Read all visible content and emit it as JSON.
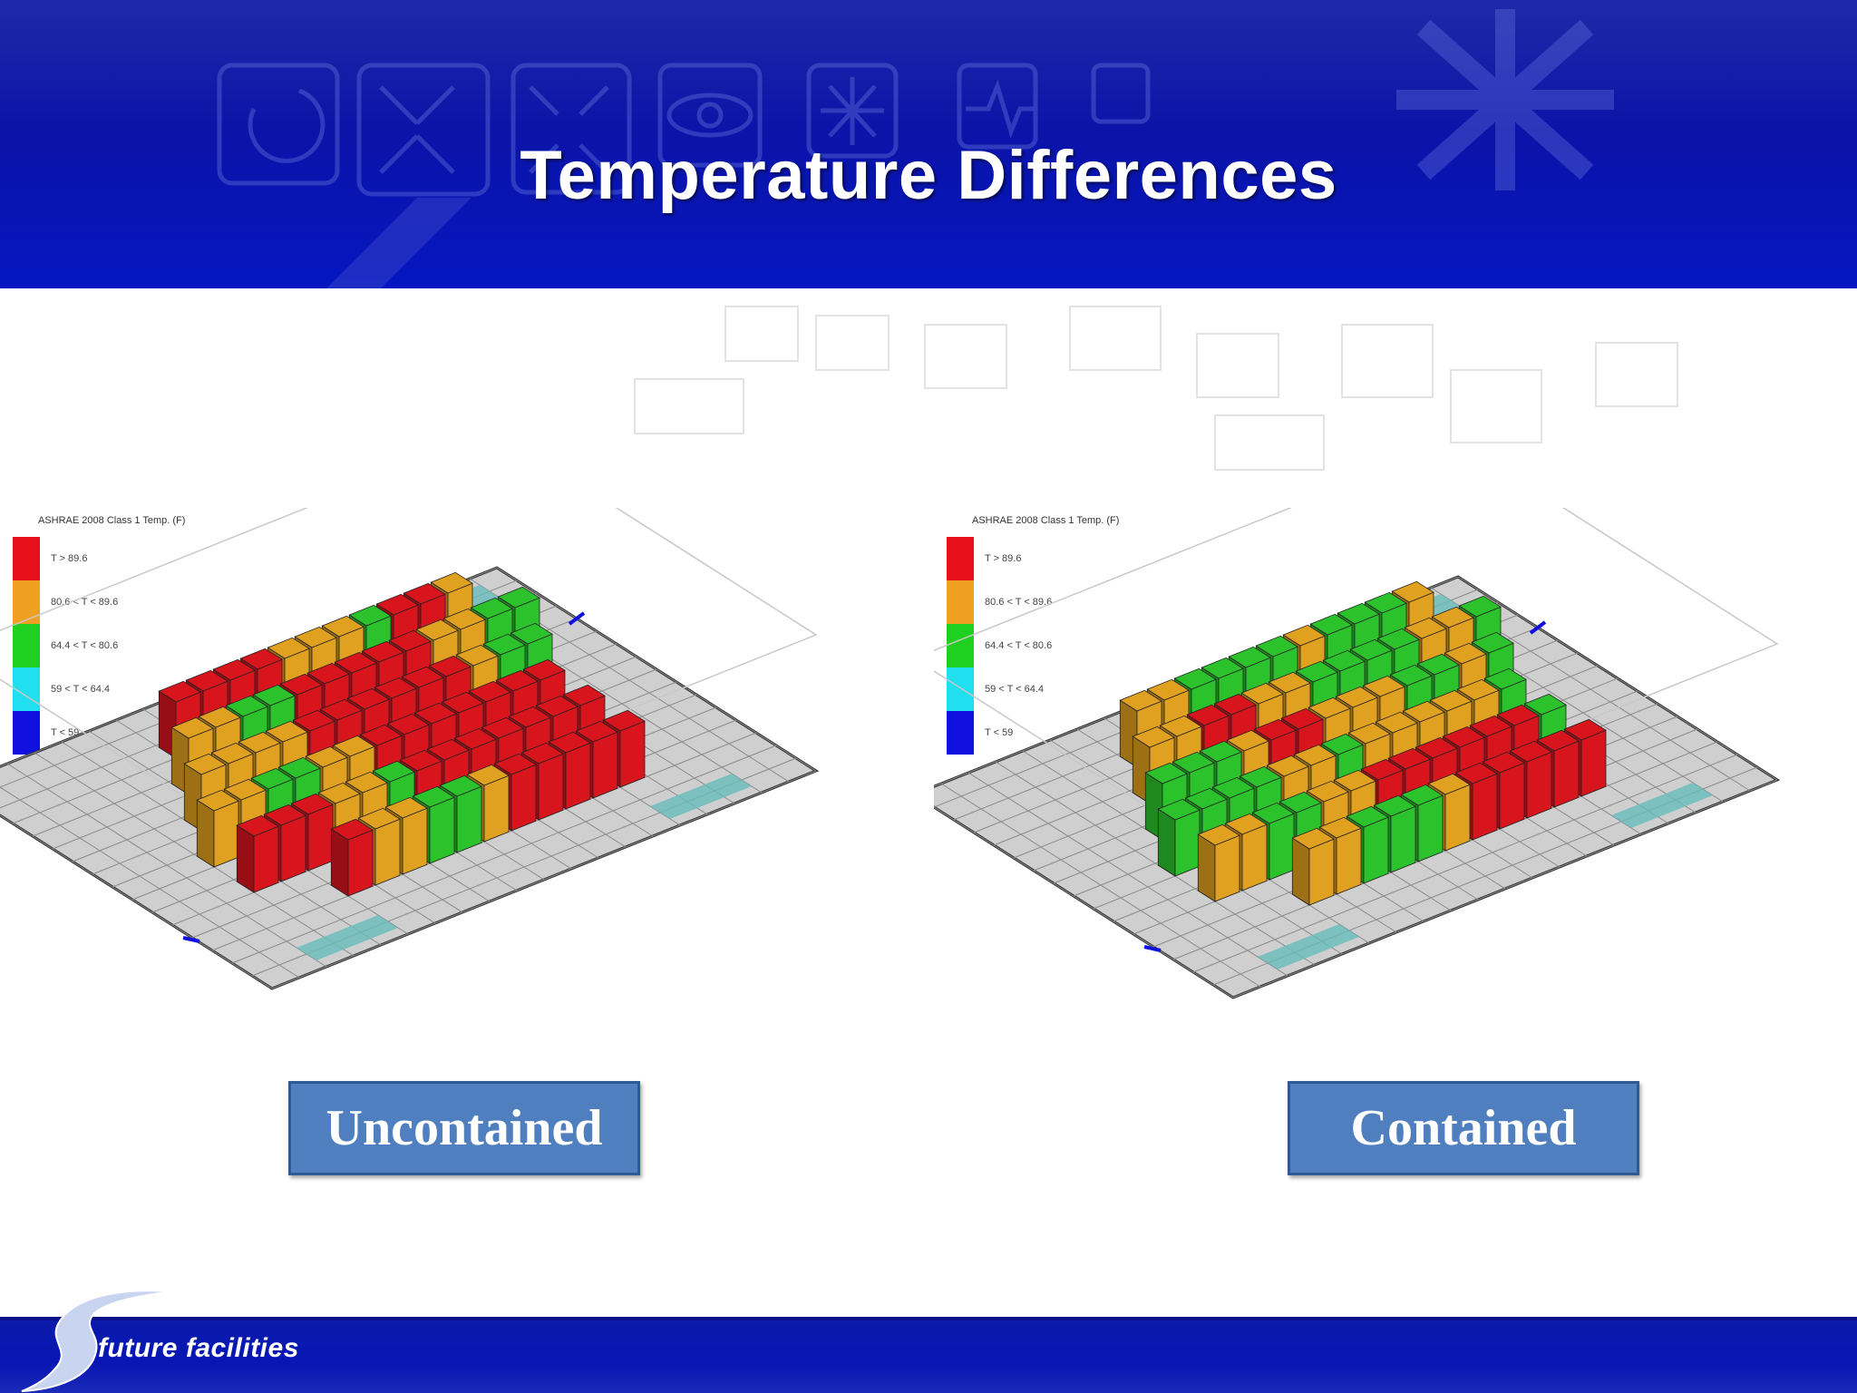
{
  "slide": {
    "title": "Temperature Differences"
  },
  "legend": {
    "title": "ASHRAE 2008 Class 1 Temp. (F)",
    "items": [
      {
        "label": "T > 89.6",
        "color": "#e8101a"
      },
      {
        "label": "80.6 < T < 89.6",
        "color": "#f0a020"
      },
      {
        "label": "64.4 < T < 80.6",
        "color": "#20d020"
      },
      {
        "label": "59 < T < 64.4",
        "color": "#20e0f0"
      },
      {
        "label": "T < 59",
        "color": "#1010e0"
      }
    ]
  },
  "panels": {
    "left_label": "Uncontained",
    "right_label": "Contained"
  },
  "footer": {
    "logo_text": "future facilities"
  },
  "colors": {
    "red": "#d8141c",
    "orange": "#e0a020",
    "green": "#2cc22c",
    "header_blue": "#0a14a8",
    "label_blue": "#4f7fbf"
  }
}
